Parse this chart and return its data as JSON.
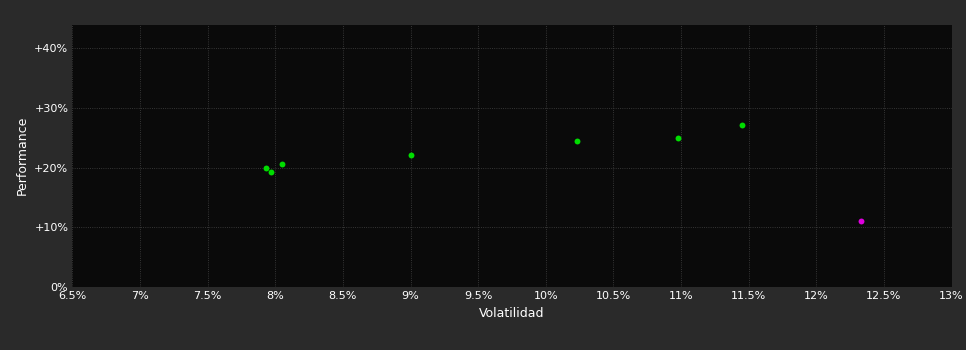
{
  "background_color": "#2a2a2a",
  "plot_bg_color": "#0a0a0a",
  "grid_color": "#444444",
  "text_color": "#ffffff",
  "xlabel": "Volatilidad",
  "ylabel": "Performance",
  "xlim": [
    0.065,
    0.13
  ],
  "ylim": [
    0.0,
    0.44
  ],
  "xticks": [
    0.065,
    0.07,
    0.075,
    0.08,
    0.085,
    0.09,
    0.095,
    0.1,
    0.105,
    0.11,
    0.115,
    0.12,
    0.125,
    0.13
  ],
  "yticks": [
    0.0,
    0.1,
    0.2,
    0.3,
    0.4
  ],
  "ytick_labels": [
    "0%",
    "+10%",
    "+20%",
    "+30%",
    "+40%"
  ],
  "xtick_labels": [
    "6.5%",
    "7%",
    "7.5%",
    "8%",
    "8.5%",
    "9%",
    "9.5%",
    "10%",
    "10.5%",
    "11%",
    "11.5%",
    "12%",
    "12.5%",
    "13%"
  ],
  "green_points": [
    [
      0.0793,
      0.2
    ],
    [
      0.0805,
      0.207
    ],
    [
      0.0797,
      0.193
    ],
    [
      0.09,
      0.221
    ],
    [
      0.1023,
      0.245
    ],
    [
      0.1098,
      0.25
    ],
    [
      0.1145,
      0.272
    ]
  ],
  "magenta_points": [
    [
      0.1233,
      0.11
    ]
  ],
  "green_color": "#00dd00",
  "magenta_color": "#dd00dd",
  "font_size_axis_label": 9,
  "font_size_ticks": 8
}
